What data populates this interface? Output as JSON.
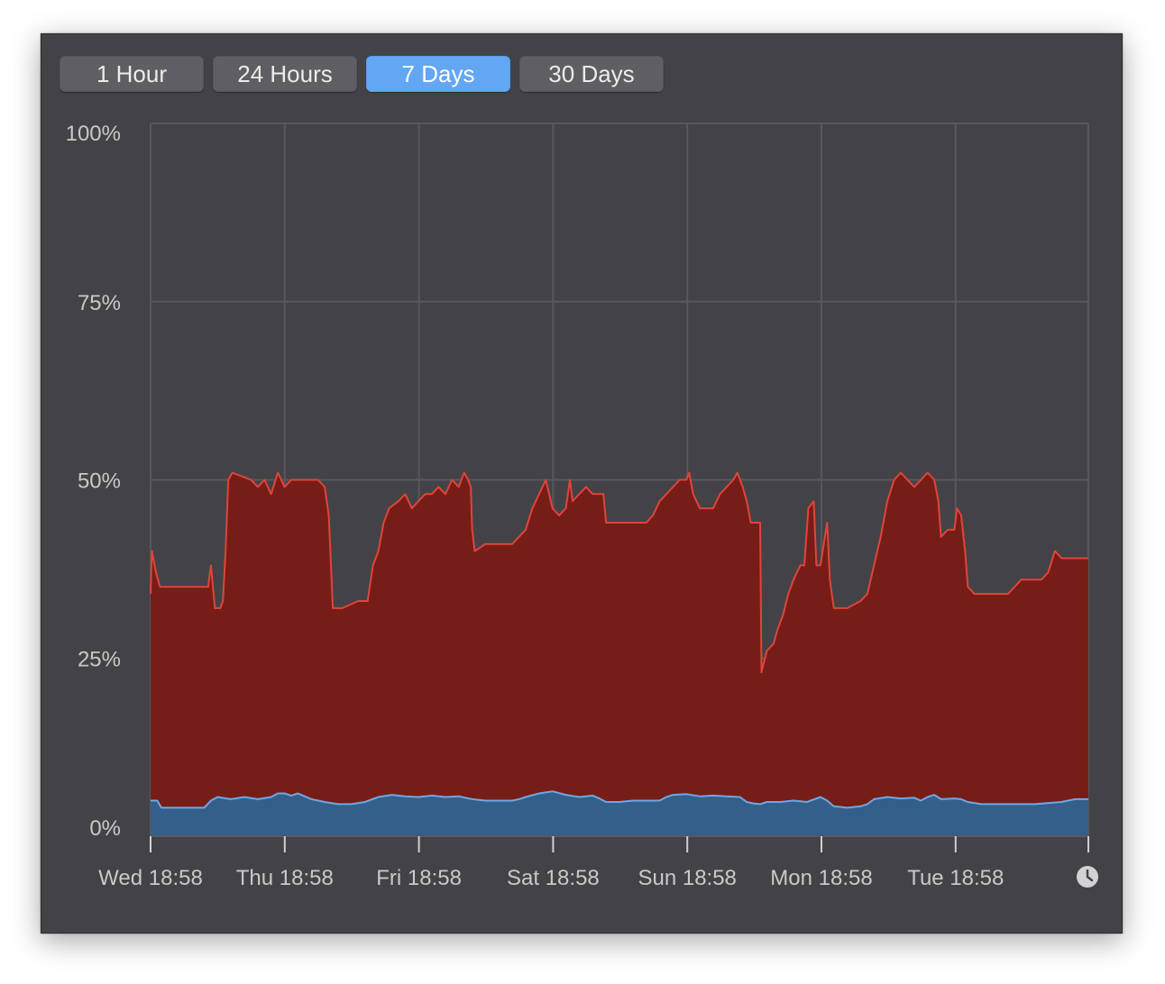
{
  "toolbar": {
    "buttons": [
      {
        "label": "1 Hour",
        "active": false
      },
      {
        "label": "24 Hours",
        "active": false
      },
      {
        "label": "7 Days",
        "active": true
      },
      {
        "label": "30 Days",
        "active": false
      }
    ]
  },
  "colors": {
    "background": "#434347",
    "grid": "#57575c",
    "red_fill": "#761d17",
    "red_line": "#e0443a",
    "blue_fill": "#335f8a",
    "blue_line": "#6ea8e4",
    "active_button": "#63a7f4"
  },
  "icons": {
    "history": "clock-icon"
  },
  "chart_data": {
    "type": "area",
    "ylim": [
      0,
      100
    ],
    "y_ticks": [
      0,
      25,
      50,
      75,
      100
    ],
    "y_tick_labels": [
      "0%",
      "25%",
      "50%",
      "75%",
      "100%"
    ],
    "x_tick_labels": [
      "Wed 18:58",
      "Thu 18:58",
      "Fri 18:58",
      "Sat 18:58",
      "Sun 18:58",
      "Mon 18:58",
      "Tue 18:58"
    ],
    "x_range_days": [
      0,
      7
    ],
    "grid": true,
    "series": [
      {
        "color": "#761d17",
        "stack_total": true,
        "points": [
          [
            0.0,
            34
          ],
          [
            0.01,
            40
          ],
          [
            0.04,
            37
          ],
          [
            0.07,
            35
          ],
          [
            0.3,
            35
          ],
          [
            0.43,
            35
          ],
          [
            0.45,
            38
          ],
          [
            0.48,
            32
          ],
          [
            0.52,
            32
          ],
          [
            0.54,
            33
          ],
          [
            0.56,
            40
          ],
          [
            0.58,
            50
          ],
          [
            0.61,
            51
          ],
          [
            0.75,
            50
          ],
          [
            0.8,
            49
          ],
          [
            0.85,
            50
          ],
          [
            0.9,
            48
          ],
          [
            0.95,
            51
          ],
          [
            1.0,
            49
          ],
          [
            1.05,
            50
          ],
          [
            1.1,
            50
          ],
          [
            1.25,
            50
          ],
          [
            1.3,
            49
          ],
          [
            1.33,
            45
          ],
          [
            1.36,
            32
          ],
          [
            1.43,
            32
          ],
          [
            1.55,
            33
          ],
          [
            1.62,
            33
          ],
          [
            1.66,
            38
          ],
          [
            1.7,
            40
          ],
          [
            1.74,
            44
          ],
          [
            1.78,
            46
          ],
          [
            1.85,
            47
          ],
          [
            1.9,
            48
          ],
          [
            1.95,
            46
          ],
          [
            2.0,
            47
          ],
          [
            2.05,
            48
          ],
          [
            2.1,
            48
          ],
          [
            2.15,
            49
          ],
          [
            2.2,
            48
          ],
          [
            2.25,
            50
          ],
          [
            2.3,
            49
          ],
          [
            2.34,
            51
          ],
          [
            2.37,
            50
          ],
          [
            2.39,
            49
          ],
          [
            2.4,
            43
          ],
          [
            2.42,
            40
          ],
          [
            2.5,
            41
          ],
          [
            2.6,
            41
          ],
          [
            2.7,
            41
          ],
          [
            2.75,
            42
          ],
          [
            2.8,
            43
          ],
          [
            2.85,
            46
          ],
          [
            2.9,
            48
          ],
          [
            2.95,
            50
          ],
          [
            3.0,
            46
          ],
          [
            3.05,
            45
          ],
          [
            3.1,
            46
          ],
          [
            3.13,
            50
          ],
          [
            3.15,
            47
          ],
          [
            3.2,
            48
          ],
          [
            3.25,
            49
          ],
          [
            3.3,
            48
          ],
          [
            3.38,
            48
          ],
          [
            3.4,
            44
          ],
          [
            3.5,
            44
          ],
          [
            3.7,
            44
          ],
          [
            3.75,
            45
          ],
          [
            3.8,
            47
          ],
          [
            3.85,
            48
          ],
          [
            3.9,
            49
          ],
          [
            3.95,
            50
          ],
          [
            4.0,
            50
          ],
          [
            4.02,
            51
          ],
          [
            4.05,
            48
          ],
          [
            4.1,
            46
          ],
          [
            4.15,
            46
          ],
          [
            4.2,
            46
          ],
          [
            4.25,
            48
          ],
          [
            4.3,
            49
          ],
          [
            4.35,
            50
          ],
          [
            4.38,
            51
          ],
          [
            4.42,
            49
          ],
          [
            4.45,
            47
          ],
          [
            4.48,
            44
          ],
          [
            4.5,
            44
          ],
          [
            4.55,
            44
          ],
          [
            4.56,
            23
          ],
          [
            4.6,
            26
          ],
          [
            4.65,
            27
          ],
          [
            4.68,
            29
          ],
          [
            4.72,
            31
          ],
          [
            4.76,
            34
          ],
          [
            4.8,
            36
          ],
          [
            4.85,
            38
          ],
          [
            4.88,
            38
          ],
          [
            4.91,
            46
          ],
          [
            4.95,
            47
          ],
          [
            4.97,
            38
          ],
          [
            5.0,
            38
          ],
          [
            5.05,
            44
          ],
          [
            5.07,
            36
          ],
          [
            5.1,
            32
          ],
          [
            5.2,
            32
          ],
          [
            5.3,
            33
          ],
          [
            5.35,
            34
          ],
          [
            5.4,
            38
          ],
          [
            5.45,
            42
          ],
          [
            5.5,
            47
          ],
          [
            5.55,
            50
          ],
          [
            5.6,
            51
          ],
          [
            5.65,
            50
          ],
          [
            5.7,
            49
          ],
          [
            5.75,
            50
          ],
          [
            5.8,
            51
          ],
          [
            5.85,
            50
          ],
          [
            5.88,
            47
          ],
          [
            5.9,
            42
          ],
          [
            5.95,
            43
          ],
          [
            6.0,
            43
          ],
          [
            6.02,
            46
          ],
          [
            6.05,
            45
          ],
          [
            6.08,
            40
          ],
          [
            6.1,
            35
          ],
          [
            6.15,
            34
          ],
          [
            6.2,
            34
          ],
          [
            6.4,
            34
          ],
          [
            6.45,
            35
          ],
          [
            6.5,
            36
          ],
          [
            6.6,
            36
          ],
          [
            6.65,
            36
          ],
          [
            6.7,
            37
          ],
          [
            6.75,
            40
          ],
          [
            6.8,
            39
          ],
          [
            7.0,
            39
          ]
        ]
      },
      {
        "color": "#335f8a",
        "points": [
          [
            0.0,
            5
          ],
          [
            0.05,
            5
          ],
          [
            0.08,
            4
          ],
          [
            0.2,
            4
          ],
          [
            0.4,
            4
          ],
          [
            0.45,
            5
          ],
          [
            0.5,
            5.5
          ],
          [
            0.6,
            5.2
          ],
          [
            0.7,
            5.5
          ],
          [
            0.8,
            5.2
          ],
          [
            0.9,
            5.5
          ],
          [
            0.95,
            6
          ],
          [
            1.0,
            6
          ],
          [
            1.05,
            5.7
          ],
          [
            1.1,
            6
          ],
          [
            1.15,
            5.6
          ],
          [
            1.2,
            5.2
          ],
          [
            1.3,
            4.8
          ],
          [
            1.4,
            4.5
          ],
          [
            1.5,
            4.5
          ],
          [
            1.6,
            4.8
          ],
          [
            1.7,
            5.5
          ],
          [
            1.8,
            5.8
          ],
          [
            1.9,
            5.6
          ],
          [
            2.0,
            5.5
          ],
          [
            2.1,
            5.7
          ],
          [
            2.2,
            5.5
          ],
          [
            2.3,
            5.6
          ],
          [
            2.4,
            5.2
          ],
          [
            2.5,
            5
          ],
          [
            2.6,
            5
          ],
          [
            2.7,
            5
          ],
          [
            2.75,
            5.2
          ],
          [
            2.8,
            5.5
          ],
          [
            2.9,
            6
          ],
          [
            3.0,
            6.3
          ],
          [
            3.1,
            5.8
          ],
          [
            3.2,
            5.5
          ],
          [
            3.3,
            5.7
          ],
          [
            3.35,
            5.3
          ],
          [
            3.4,
            4.8
          ],
          [
            3.5,
            4.8
          ],
          [
            3.6,
            5
          ],
          [
            3.7,
            5
          ],
          [
            3.8,
            5
          ],
          [
            3.85,
            5.5
          ],
          [
            3.9,
            5.8
          ],
          [
            4.0,
            5.9
          ],
          [
            4.1,
            5.6
          ],
          [
            4.2,
            5.7
          ],
          [
            4.3,
            5.6
          ],
          [
            4.4,
            5.5
          ],
          [
            4.45,
            4.8
          ],
          [
            4.5,
            4.6
          ],
          [
            4.55,
            4.5
          ],
          [
            4.6,
            4.8
          ],
          [
            4.7,
            4.8
          ],
          [
            4.8,
            5
          ],
          [
            4.9,
            4.8
          ],
          [
            5.0,
            5.5
          ],
          [
            5.05,
            5
          ],
          [
            5.1,
            4.2
          ],
          [
            5.2,
            4
          ],
          [
            5.3,
            4.2
          ],
          [
            5.35,
            4.5
          ],
          [
            5.4,
            5.2
          ],
          [
            5.5,
            5.5
          ],
          [
            5.6,
            5.3
          ],
          [
            5.7,
            5.4
          ],
          [
            5.75,
            5
          ],
          [
            5.8,
            5.5
          ],
          [
            5.85,
            5.8
          ],
          [
            5.9,
            5.2
          ],
          [
            6.0,
            5.3
          ],
          [
            6.05,
            5.2
          ],
          [
            6.1,
            4.8
          ],
          [
            6.2,
            4.5
          ],
          [
            6.4,
            4.5
          ],
          [
            6.6,
            4.5
          ],
          [
            6.8,
            4.8
          ],
          [
            6.9,
            5.2
          ],
          [
            7.0,
            5.2
          ]
        ]
      }
    ]
  }
}
